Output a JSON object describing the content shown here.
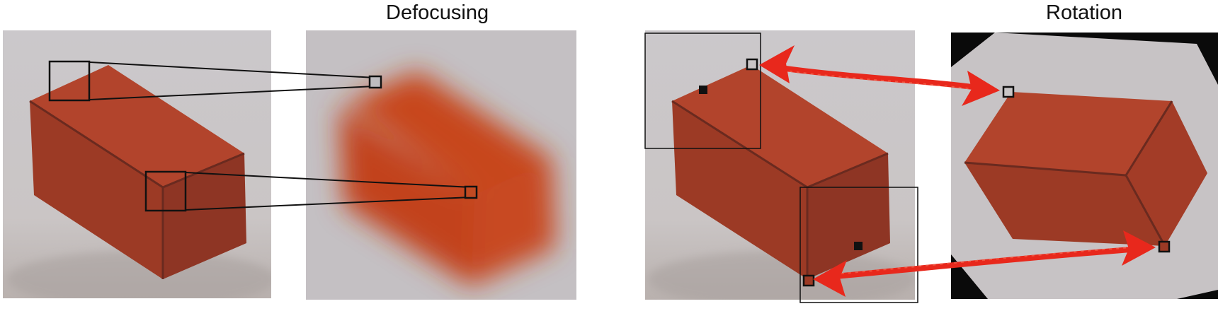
{
  "titles": {
    "defocusing": "Defocusing",
    "rotation": "Rotation"
  },
  "colors": {
    "background": "#ffffff",
    "wall": "#c9c5c6",
    "wall_blur": "#c3bfc2",
    "box_top": "#b2442c",
    "box_front": "#9c3a25",
    "box_side": "#8e3524",
    "box_blur": "#c2461f",
    "rotation_fill": "#0a0a0a",
    "arrow": "#e8281c",
    "outline": "#111111"
  },
  "panels": [
    {
      "id": "original-left",
      "effect": "none"
    },
    {
      "id": "defocused",
      "effect": "blur"
    },
    {
      "id": "original-right",
      "effect": "none"
    },
    {
      "id": "rotated",
      "effect": "rotation"
    }
  ]
}
